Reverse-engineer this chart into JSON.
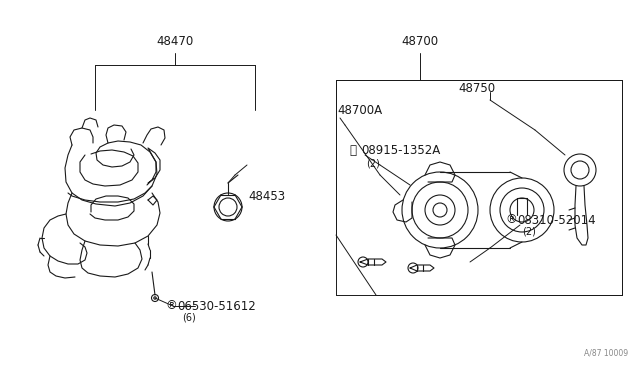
{
  "bg_color": "#ffffff",
  "line_color": "#1a1a1a",
  "fig_width": 6.4,
  "fig_height": 3.72,
  "dpi": 100,
  "watermark": "A/87 10009",
  "label_48470": "48470",
  "label_48700": "48700",
  "label_48700A": "48700A",
  "label_48750": "48750",
  "label_48453": "48453",
  "label_s06530": "06530-51612",
  "label_s06530_sub": "(6)",
  "label_v08915": "08915-1352A",
  "label_v08915_sub": "(2)",
  "label_s08310": "08310-52014",
  "label_s08310_sub": "(2)"
}
